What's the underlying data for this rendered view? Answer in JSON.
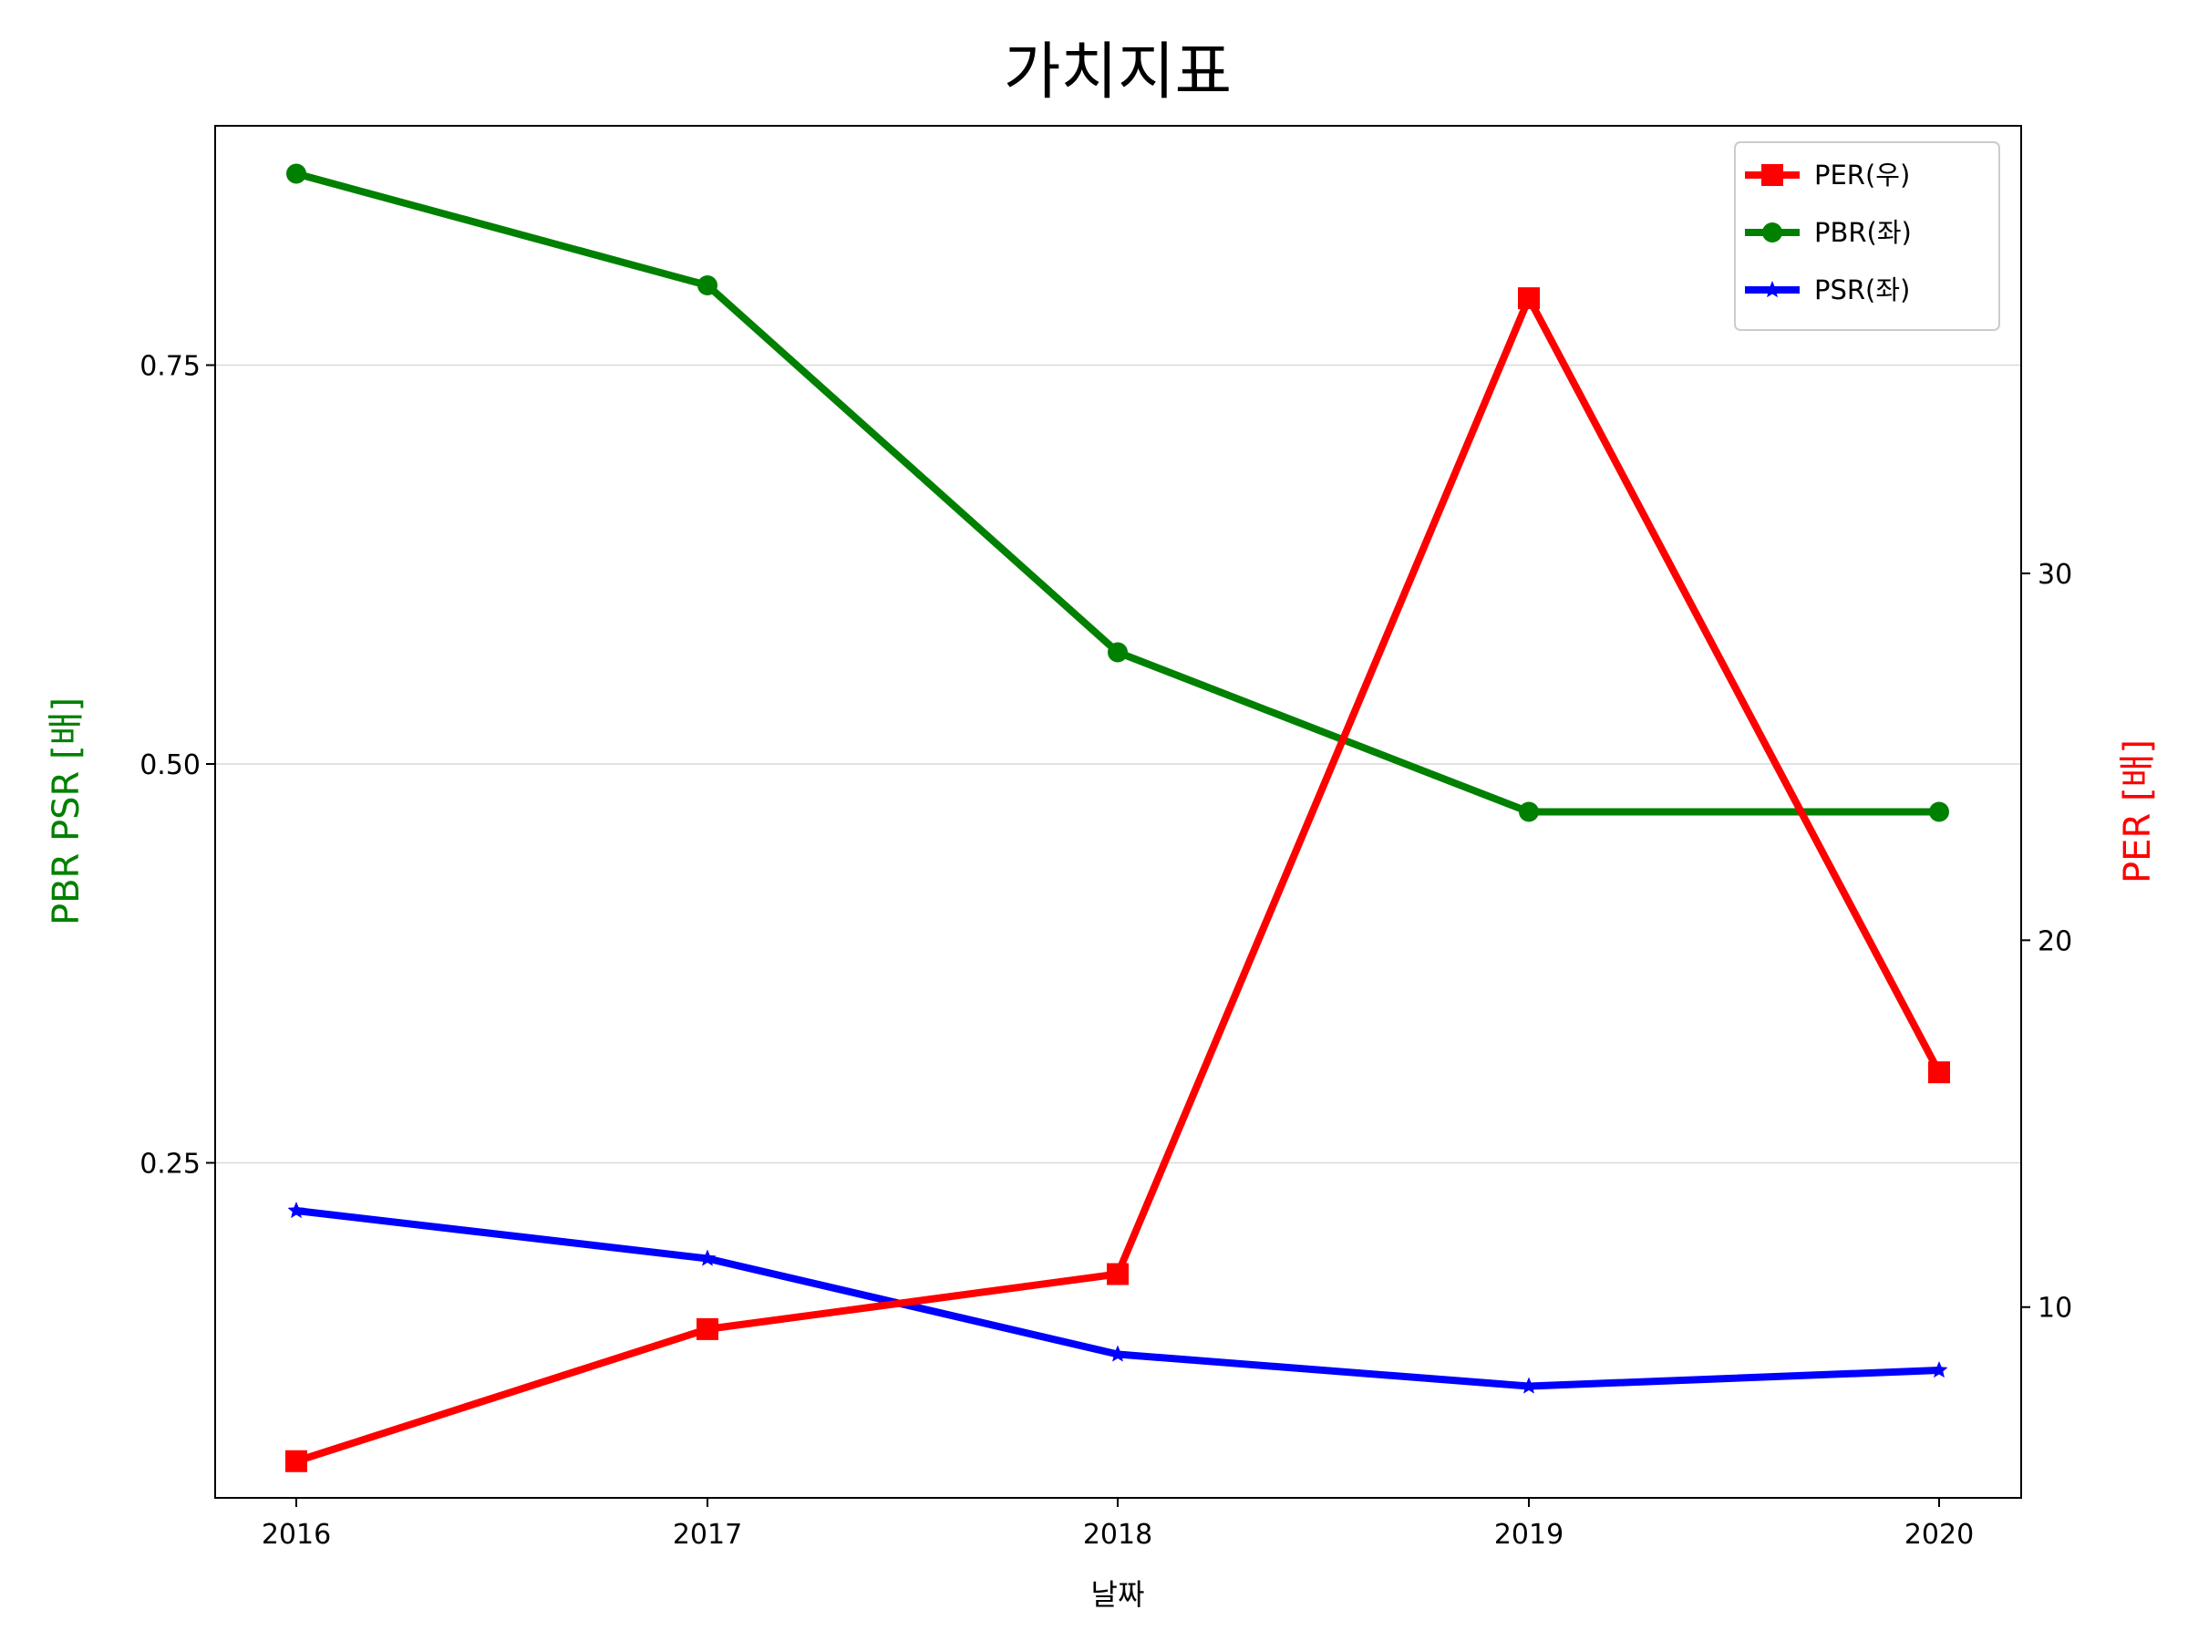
{
  "chart_data": {
    "type": "line",
    "title": "가치지표",
    "xlabel": "날짜",
    "ylabel_left": "PBR PSR [배]",
    "ylabel_right": "PER [배]",
    "ylabel_left_color": "#008000",
    "ylabel_right_color": "#ff0000",
    "categories": [
      "2016",
      "2017",
      "2018",
      "2019",
      "2020"
    ],
    "left_axis": {
      "ylim": [
        0.04,
        0.9
      ],
      "ticks": [
        0.25,
        0.5,
        0.75
      ],
      "tick_labels": [
        "0.25",
        "0.50",
        "0.75"
      ],
      "grid": true
    },
    "right_axis": {
      "ylim": [
        4.8,
        42.2
      ],
      "ticks": [
        10,
        20,
        30
      ],
      "tick_labels": [
        "10",
        "20",
        "30"
      ]
    },
    "series": [
      {
        "name": "PER(우)",
        "axis": "right",
        "color": "#ff0000",
        "marker": "square",
        "values": [
          5.8,
          9.4,
          10.9,
          37.5,
          16.4
        ]
      },
      {
        "name": "PBR(좌)",
        "axis": "left",
        "color": "#008000",
        "marker": "circle",
        "values": [
          0.87,
          0.8,
          0.57,
          0.47,
          0.47
        ]
      },
      {
        "name": "PSR(좌)",
        "axis": "left",
        "color": "#0000ff",
        "marker": "star",
        "values": [
          0.22,
          0.19,
          0.13,
          0.11,
          0.12
        ]
      }
    ],
    "legend_position": "top-right"
  }
}
